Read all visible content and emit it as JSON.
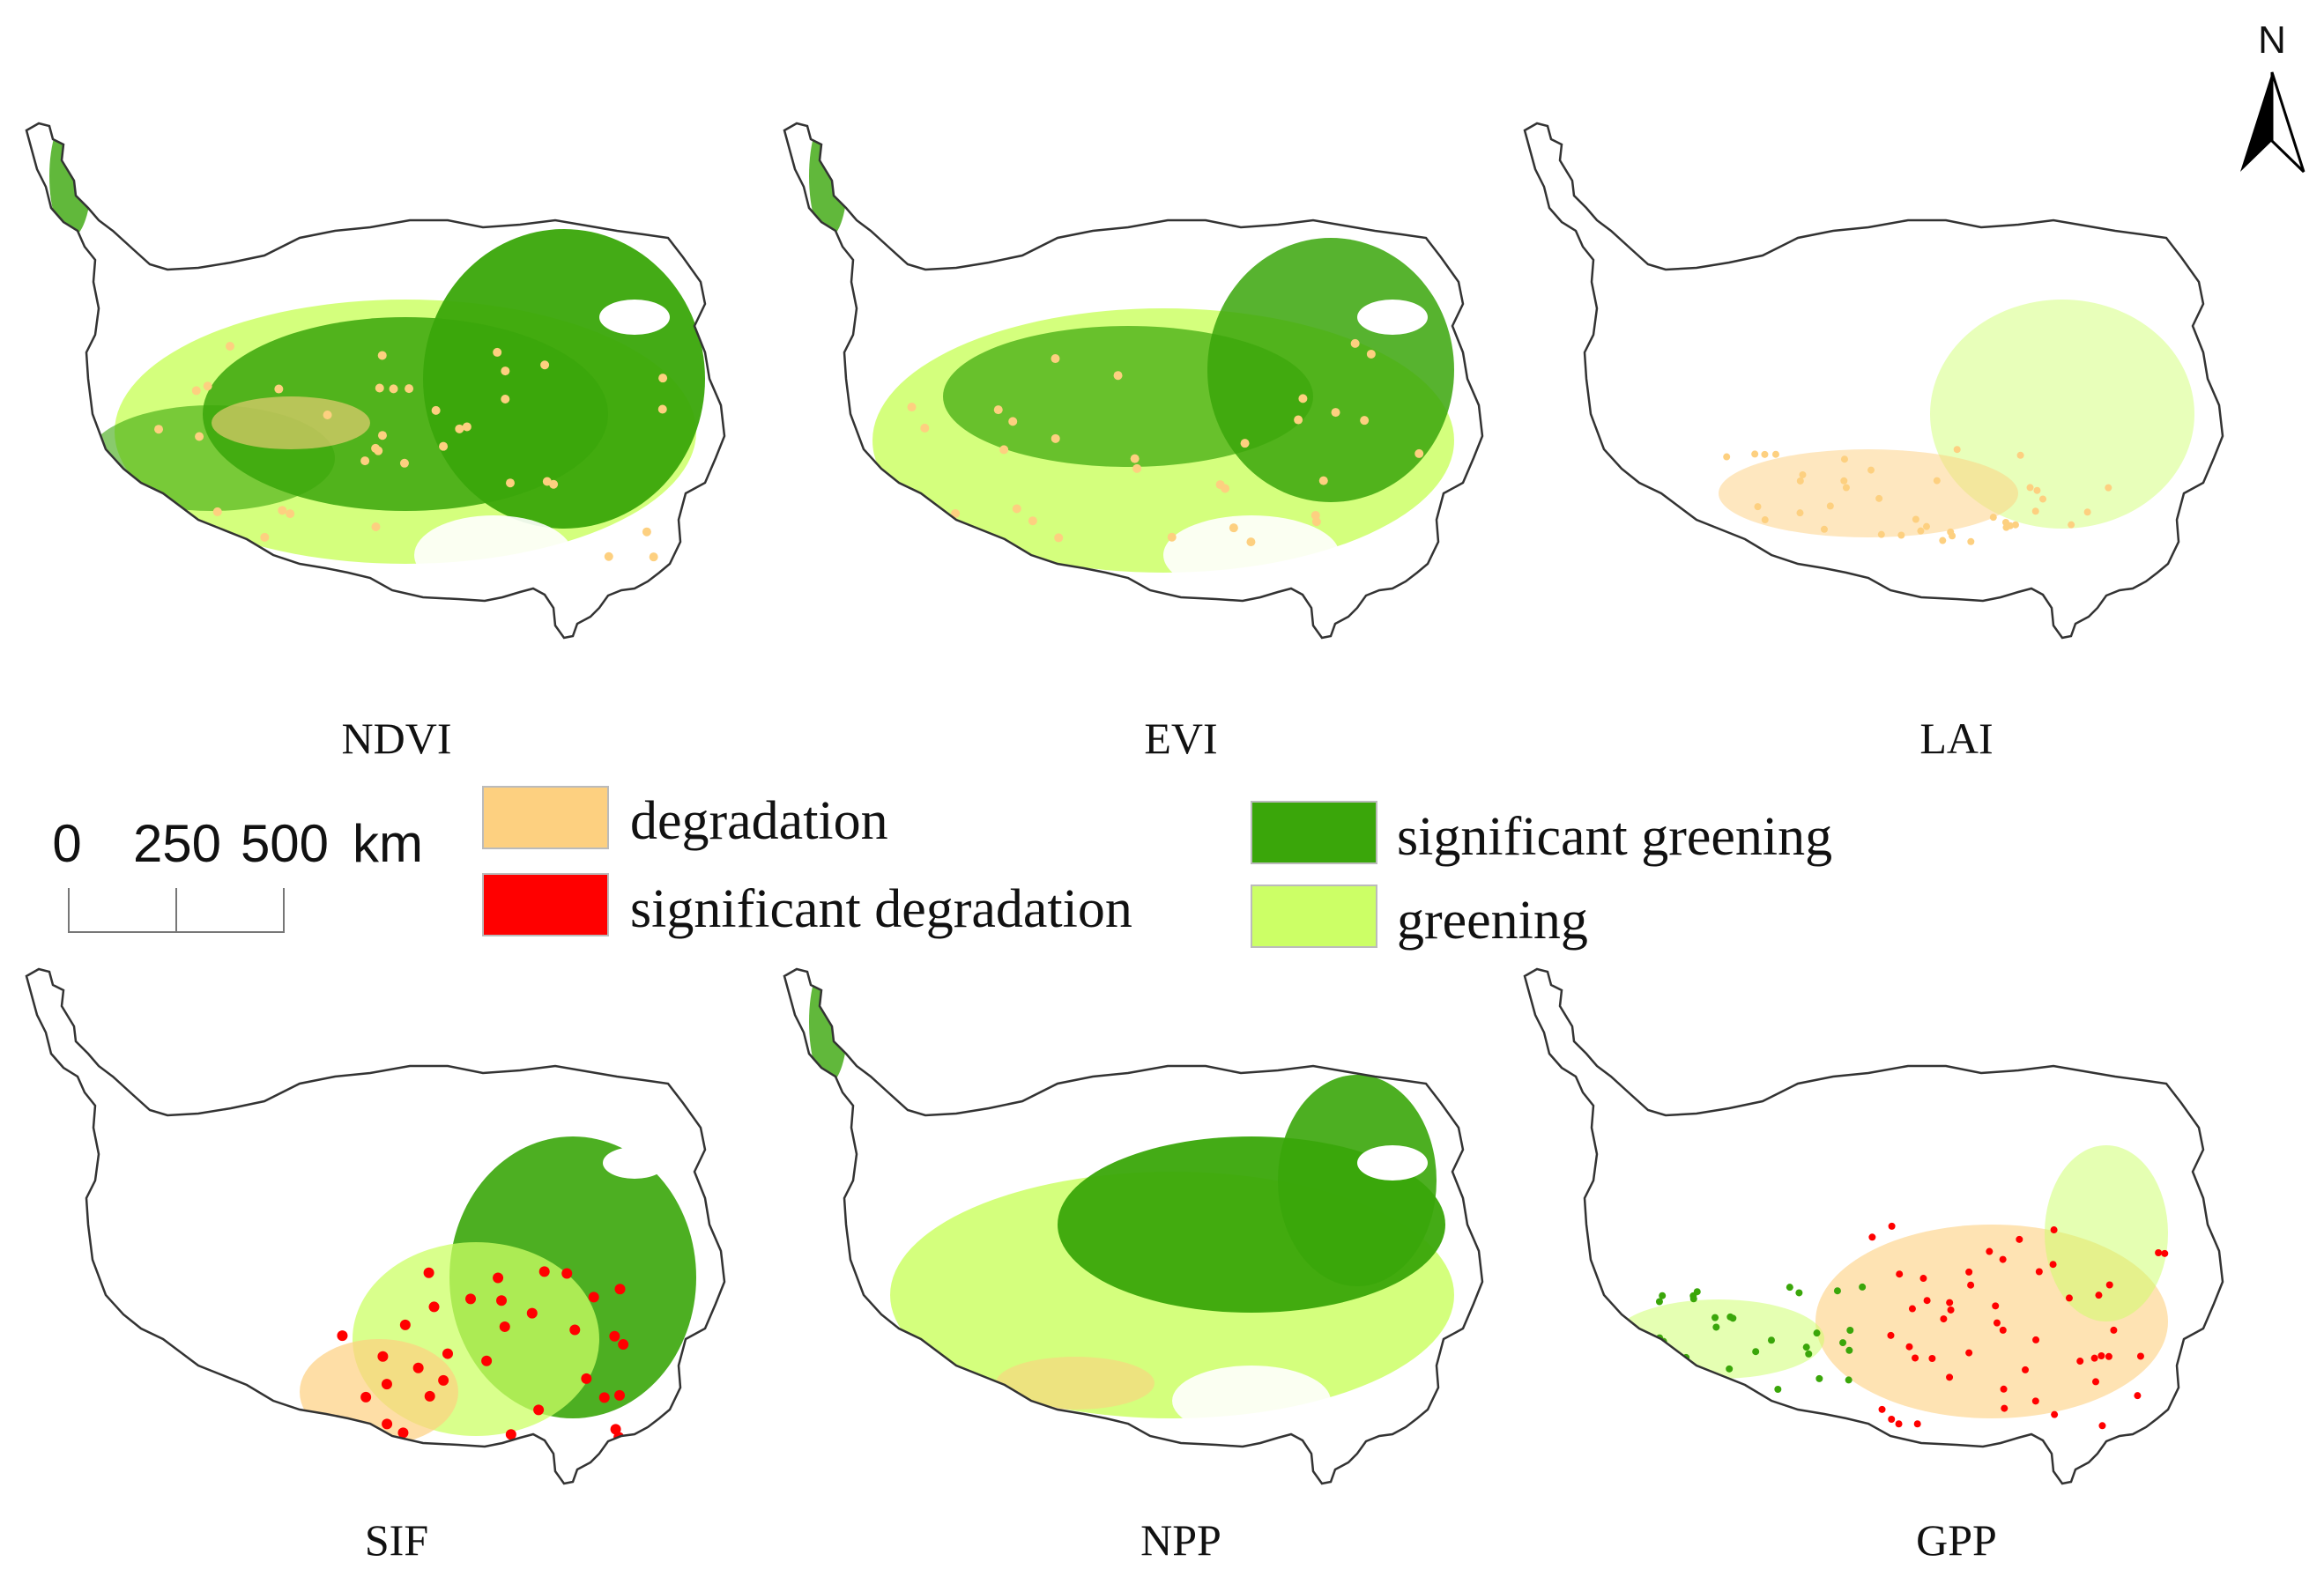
{
  "maps": [
    {
      "label": "NDVI",
      "pattern": "ndvi"
    },
    {
      "label": "EVI",
      "pattern": "evi"
    },
    {
      "label": "LAI",
      "pattern": "lai"
    },
    {
      "label": "SIF",
      "pattern": "sif"
    },
    {
      "label": "NPP",
      "pattern": "npp"
    },
    {
      "label": "GPP",
      "pattern": "gpp"
    }
  ],
  "legend": [
    {
      "label": "degradation",
      "color": "#fdd080"
    },
    {
      "label": "significant degradation",
      "color": "#ff0000"
    },
    {
      "label": "significant greening",
      "color": "#3aa60a"
    },
    {
      "label": "greening",
      "color": "#ccff66"
    }
  ],
  "scale_bar": {
    "ticks": [
      "0",
      "250",
      "500"
    ],
    "unit": "km"
  },
  "north_arrow": {
    "label": "N"
  }
}
